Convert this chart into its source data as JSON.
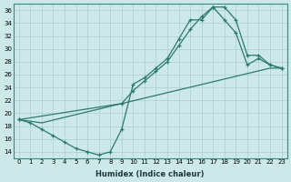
{
  "bg_color": "#cce8e8",
  "grid_color": "#aacfcf",
  "line_color": "#2d7a6e",
  "marker": "+",
  "xlabel": "Humidex (Indice chaleur)",
  "xlim": [
    -0.5,
    23.5
  ],
  "ylim": [
    13,
    37
  ],
  "xticks": [
    0,
    1,
    2,
    3,
    4,
    5,
    6,
    7,
    8,
    9,
    10,
    11,
    12,
    13,
    14,
    15,
    16,
    17,
    18,
    19,
    20,
    21,
    22,
    23
  ],
  "yticks": [
    14,
    16,
    18,
    20,
    22,
    24,
    26,
    28,
    30,
    32,
    34,
    36
  ],
  "line1_x": [
    0,
    1,
    2,
    3,
    4,
    5,
    6,
    7,
    8,
    9,
    10,
    11,
    12,
    13,
    14,
    15,
    16,
    17,
    18,
    19,
    20,
    21,
    22,
    23
  ],
  "line1_y": [
    19.0,
    18.5,
    17.5,
    16.5,
    15.5,
    14.5,
    14.0,
    13.5,
    14.0,
    17.5,
    24.5,
    25.5,
    27.0,
    28.5,
    31.5,
    34.5,
    34.5,
    36.5,
    36.5,
    34.5,
    29.0,
    29.0,
    27.5,
    27.0
  ],
  "line2_x": [
    0,
    2,
    9,
    22,
    23
  ],
  "line2_y": [
    19.0,
    18.5,
    21.5,
    27.0,
    27.0
  ],
  "line3_x": [
    0,
    9,
    10,
    11,
    12,
    13,
    14,
    15,
    16,
    17,
    18,
    19,
    20,
    21,
    22,
    23
  ],
  "line3_y": [
    19.0,
    21.5,
    23.5,
    25.0,
    26.5,
    28.0,
    30.5,
    33.0,
    35.0,
    36.5,
    34.5,
    32.5,
    27.5,
    28.5,
    27.5,
    27.0
  ]
}
